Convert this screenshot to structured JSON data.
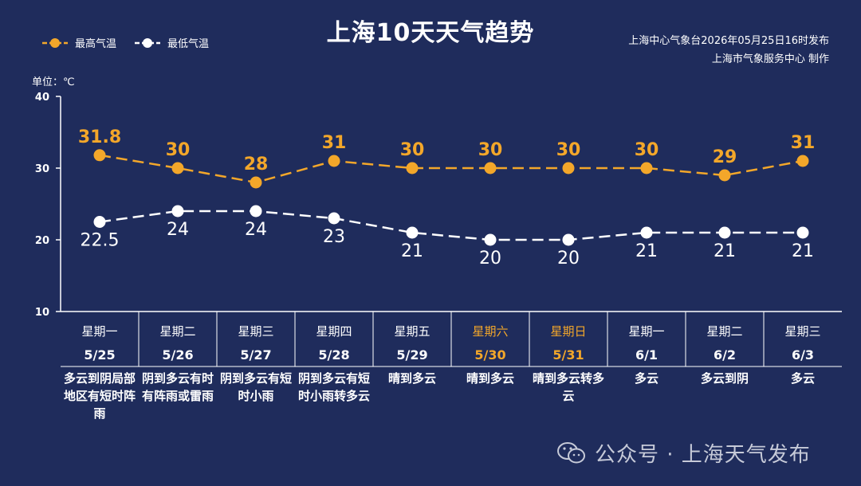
{
  "title": "上海10天天气趋势",
  "publisher": {
    "line1": "上海中心气象台2026年05月25日16时发布",
    "line2": "上海市气象服务中心 制作"
  },
  "unit_label": "单位：℃",
  "watermark": "公众号 · 上海天气发布",
  "colors": {
    "background": "#1f2c5c",
    "high": "#f3a72a",
    "low": "#ffffff",
    "weekend": "#f3a72a"
  },
  "chart_data": {
    "type": "line",
    "ylim": [
      10,
      40
    ],
    "yticks": [
      10,
      20,
      30,
      40
    ],
    "categories": [
      "5/25",
      "5/26",
      "5/27",
      "5/28",
      "5/29",
      "5/30",
      "5/31",
      "6/1",
      "6/2",
      "6/3"
    ],
    "weekdays": [
      "星期一",
      "星期二",
      "星期三",
      "星期四",
      "星期五",
      "星期六",
      "星期日",
      "星期一",
      "星期二",
      "星期三"
    ],
    "weekend_flags": [
      false,
      false,
      false,
      false,
      false,
      true,
      true,
      false,
      false,
      false
    ],
    "weather": [
      "多云到阴局部地区有短时阵雨",
      "阴到多云有时有阵雨或雷雨",
      "阴到多云有短时小雨",
      "阴到多云有短时小雨转多云",
      "晴到多云",
      "晴到多云",
      "晴到多云转多云",
      "多云",
      "多云到阴",
      "多云"
    ],
    "series": [
      {
        "name": "最高气温",
        "values": [
          31.8,
          30,
          28,
          31,
          30,
          30,
          30,
          30,
          29,
          31
        ]
      },
      {
        "name": "最低气温",
        "values": [
          22.5,
          24,
          24,
          23,
          21,
          20,
          20,
          21,
          21,
          21
        ]
      }
    ],
    "high_labels": [
      "31.8",
      "30",
      "28",
      "31",
      "30",
      "30",
      "30",
      "30",
      "29",
      "31"
    ],
    "low_labels": [
      "22.5",
      "24",
      "24",
      "23",
      "21",
      "20",
      "20",
      "21",
      "21",
      "21"
    ]
  }
}
